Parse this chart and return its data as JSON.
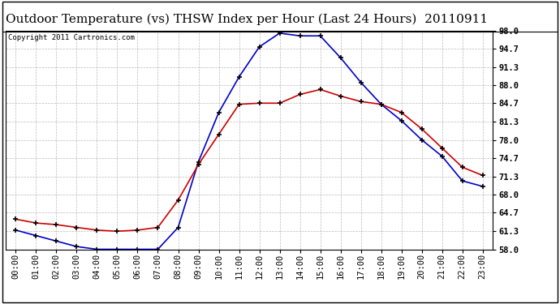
{
  "title": "Outdoor Temperature (vs) THSW Index per Hour (Last 24 Hours)  20110911",
  "copyright": "Copyright 2011 Cartronics.com",
  "hours": [
    "00:00",
    "01:00",
    "02:00",
    "03:00",
    "04:00",
    "05:00",
    "06:00",
    "07:00",
    "08:00",
    "09:00",
    "10:00",
    "11:00",
    "12:00",
    "13:00",
    "14:00",
    "15:00",
    "16:00",
    "17:00",
    "18:00",
    "19:00",
    "20:00",
    "21:00",
    "22:00",
    "23:00"
  ],
  "temp": [
    63.5,
    62.8,
    62.5,
    62.0,
    61.5,
    61.3,
    61.5,
    62.0,
    67.0,
    73.5,
    79.0,
    84.5,
    84.7,
    84.7,
    86.3,
    87.2,
    86.0,
    85.0,
    84.5,
    83.0,
    80.0,
    76.5,
    73.0,
    71.5
  ],
  "thsw": [
    61.5,
    60.5,
    59.5,
    58.5,
    58.0,
    58.0,
    58.0,
    58.0,
    62.0,
    74.0,
    83.0,
    89.5,
    95.0,
    97.5,
    97.0,
    97.0,
    93.0,
    88.5,
    84.5,
    81.5,
    78.0,
    75.0,
    70.5,
    69.5
  ],
  "ylim_min": 58.0,
  "ylim_max": 98.0,
  "yticks": [
    58.0,
    61.3,
    64.7,
    68.0,
    71.3,
    74.7,
    78.0,
    81.3,
    84.7,
    88.0,
    91.3,
    94.7,
    98.0
  ],
  "temp_color": "#cc0000",
  "thsw_color": "#0000cc",
  "bg_color": "#ffffff",
  "grid_color": "#aaaaaa",
  "title_fontsize": 11,
  "tick_fontsize": 7.5,
  "copyright_fontsize": 6.5
}
